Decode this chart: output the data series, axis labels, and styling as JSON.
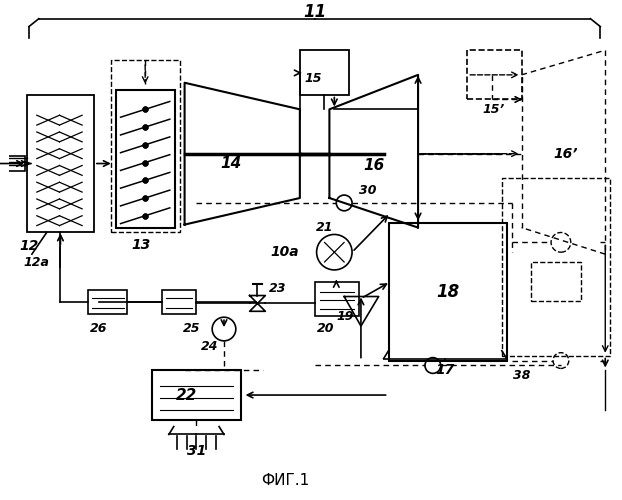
{
  "title": "ФИГ.1",
  "label_11": "11",
  "label_12": "12",
  "label_12a": "12a",
  "label_13": "13",
  "label_14": "14",
  "label_15": "15",
  "label_15p": "15’",
  "label_16": "16",
  "label_16p": "16’",
  "label_10a": "10a",
  "label_17": "17",
  "label_18": "18",
  "label_19": "19",
  "label_20": "20",
  "label_21": "21",
  "label_22": "22",
  "label_23": "23",
  "label_24": "24",
  "label_25": "25",
  "label_26": "26",
  "label_30": "30",
  "label_31": "31",
  "label_38": "38",
  "bg_color": "#ffffff",
  "line_color": "#000000",
  "dashed_color": "#000000"
}
